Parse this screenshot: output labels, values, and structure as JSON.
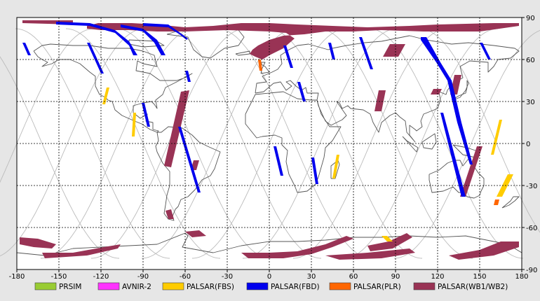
{
  "map": {
    "x_ticks": [
      "-180",
      "-150",
      "-120",
      "-90",
      "-60",
      "-30",
      "0",
      "30",
      "60",
      "90",
      "120",
      "150",
      "180"
    ],
    "y_ticks": [
      "90",
      "60",
      "30",
      "0",
      "-30",
      "-60",
      "-90"
    ],
    "x_range": [
      -180,
      180
    ],
    "y_range": [
      -90,
      90
    ],
    "grid": true,
    "grid_step_deg": 30
  },
  "legend": {
    "placement": "bottom",
    "items": [
      {
        "label": "PRSIM",
        "color": "#99cc33"
      },
      {
        "label": "AVNIR-2",
        "color": "#ff33ff"
      },
      {
        "label": "PALSAR(FBS)",
        "color": "#ffcc00"
      },
      {
        "label": "PALSAR(FBD)",
        "color": "#0000ee"
      },
      {
        "label": "PALSAR(PLR)",
        "color": "#ff6600"
      },
      {
        "label": "PALSAR(WB1/WB2)",
        "color": "#993355"
      }
    ]
  },
  "colors": {
    "background": "#ffffff",
    "coastline": "#555555",
    "orbit_track": "#bbbbbb",
    "grid": "#000000"
  },
  "swaths": [
    {
      "mode": "PALSAR(WB1/WB2)",
      "points": [
        [
          -130,
          84
        ],
        [
          -122,
          86
        ],
        [
          -98,
          86
        ],
        [
          -80,
          85
        ],
        [
          -60,
          83
        ],
        [
          -40,
          84
        ],
        [
          -20,
          86
        ],
        [
          0,
          86
        ],
        [
          20,
          85
        ],
        [
          45,
          84
        ],
        [
          70,
          83
        ],
        [
          100,
          84
        ],
        [
          120,
          85
        ],
        [
          160,
          86
        ],
        [
          178,
          86
        ],
        [
          178,
          84
        ],
        [
          150,
          80
        ],
        [
          130,
          80
        ],
        [
          110,
          80
        ],
        [
          80,
          81
        ],
        [
          60,
          80
        ],
        [
          40,
          80
        ],
        [
          25,
          78
        ],
        [
          10,
          77
        ],
        [
          0,
          74
        ],
        [
          -8,
          70
        ],
        [
          -12,
          67
        ],
        [
          -14,
          64
        ],
        [
          -10,
          62
        ],
        [
          -5,
          60
        ],
        [
          0,
          63
        ],
        [
          10,
          68
        ],
        [
          18,
          75
        ],
        [
          12,
          79
        ],
        [
          0,
          80
        ],
        [
          -30,
          81
        ],
        [
          -60,
          80
        ],
        [
          -80,
          80
        ],
        [
          -100,
          81
        ],
        [
          -120,
          81
        ],
        [
          -130,
          82
        ]
      ]
    },
    {
      "mode": "PALSAR(WB1/WB2)",
      "points": [
        [
          -176,
          88
        ],
        [
          -140,
          88
        ],
        [
          -140,
          85
        ],
        [
          -176,
          86
        ]
      ]
    },
    {
      "mode": "PALSAR(WB1/WB2)",
      "points": [
        [
          -63,
          37
        ],
        [
          -57,
          38
        ],
        [
          -70,
          -17
        ],
        [
          -75,
          -16
        ]
      ]
    },
    {
      "mode": "PALSAR(WB1/WB2)",
      "points": [
        [
          -54,
          -12
        ],
        [
          -50,
          -12
        ],
        [
          -52,
          -19
        ],
        [
          -56,
          -19
        ]
      ]
    },
    {
      "mode": "PALSAR(WB1/WB2)",
      "points": [
        [
          -74,
          -48
        ],
        [
          -70,
          -47
        ],
        [
          -68,
          -54
        ],
        [
          -72,
          -54
        ]
      ]
    },
    {
      "mode": "PALSAR(WB1/WB2)",
      "points": [
        [
          86,
          71
        ],
        [
          97,
          71
        ],
        [
          92,
          62
        ],
        [
          81,
          62
        ]
      ]
    },
    {
      "mode": "PALSAR(WB1/WB2)",
      "points": [
        [
          78,
          38
        ],
        [
          83,
          38
        ],
        [
          80,
          23
        ],
        [
          75,
          23
        ]
      ]
    },
    {
      "mode": "PALSAR(WB1/WB2)",
      "points": [
        [
          132,
          49
        ],
        [
          137,
          49
        ],
        [
          134,
          35
        ],
        [
          129,
          35
        ]
      ]
    },
    {
      "mode": "PALSAR(WB1/WB2)",
      "points": [
        [
          148,
          -2
        ],
        [
          152,
          -2
        ],
        [
          140,
          -38
        ],
        [
          136,
          -38
        ]
      ]
    },
    {
      "mode": "PALSAR(WB1/WB2)",
      "points": [
        [
          117,
          39
        ],
        [
          123,
          39
        ],
        [
          121,
          35
        ],
        [
          115,
          35
        ]
      ]
    },
    {
      "mode": "PALSAR(WB1/WB2)",
      "points": [
        [
          -178,
          -67
        ],
        [
          -165,
          -68
        ],
        [
          -152,
          -72
        ],
        [
          -155,
          -75
        ],
        [
          -168,
          -74
        ],
        [
          -178,
          -72
        ]
      ]
    },
    {
      "mode": "PALSAR(WB1/WB2)",
      "points": [
        [
          -162,
          -78
        ],
        [
          -140,
          -78
        ],
        [
          -118,
          -74
        ],
        [
          -106,
          -72
        ],
        [
          -108,
          -75
        ],
        [
          -130,
          -80
        ],
        [
          -160,
          -82
        ]
      ]
    },
    {
      "mode": "PALSAR(WB1/WB2)",
      "points": [
        [
          -20,
          -78
        ],
        [
          0,
          -78
        ],
        [
          20,
          -77
        ],
        [
          40,
          -72
        ],
        [
          55,
          -66
        ],
        [
          60,
          -68
        ],
        [
          45,
          -74
        ],
        [
          30,
          -79
        ],
        [
          10,
          -82
        ],
        [
          -15,
          -82
        ]
      ]
    },
    {
      "mode": "PALSAR(WB1/WB2)",
      "points": [
        [
          40,
          -80
        ],
        [
          70,
          -78
        ],
        [
          100,
          -75
        ],
        [
          104,
          -78
        ],
        [
          80,
          -82
        ],
        [
          50,
          -83
        ]
      ]
    },
    {
      "mode": "PALSAR(WB1/WB2)",
      "points": [
        [
          128,
          -80
        ],
        [
          150,
          -76
        ],
        [
          165,
          -70
        ],
        [
          178,
          -70
        ],
        [
          178,
          -74
        ],
        [
          160,
          -80
        ],
        [
          135,
          -83
        ]
      ]
    },
    {
      "mode": "PALSAR(WB1/WB2)",
      "points": [
        [
          70,
          -73
        ],
        [
          85,
          -70
        ],
        [
          98,
          -64
        ],
        [
          102,
          -67
        ],
        [
          88,
          -75
        ],
        [
          72,
          -77
        ]
      ]
    },
    {
      "mode": "PALSAR(WB1/WB2)",
      "points": [
        [
          -60,
          -63
        ],
        [
          -50,
          -62
        ],
        [
          -45,
          -66
        ],
        [
          -55,
          -67
        ]
      ]
    },
    {
      "mode": "PALSAR(FBD)",
      "points": [
        [
          -152,
          85
        ],
        [
          -128,
          84
        ],
        [
          -110,
          79
        ],
        [
          -100,
          70
        ],
        [
          -97,
          63
        ],
        [
          -94,
          63
        ],
        [
          -100,
          73
        ],
        [
          -110,
          81
        ],
        [
          -128,
          86
        ],
        [
          -152,
          87
        ]
      ]
    },
    {
      "mode": "PALSAR(FBD)",
      "points": [
        [
          -106,
          83
        ],
        [
          -90,
          80
        ],
        [
          -82,
          72
        ],
        [
          -77,
          63
        ],
        [
          -74,
          63
        ],
        [
          -80,
          74
        ],
        [
          -90,
          82
        ],
        [
          -106,
          85
        ]
      ]
    },
    {
      "mode": "PALSAR(FBD)",
      "points": [
        [
          -90,
          84
        ],
        [
          -72,
          83
        ],
        [
          -64,
          78
        ],
        [
          -59,
          74
        ],
        [
          -58,
          75
        ],
        [
          -65,
          80
        ],
        [
          -72,
          85
        ],
        [
          -90,
          86
        ]
      ]
    },
    {
      "mode": "PALSAR(FBD)",
      "points": [
        [
          -130,
          72
        ],
        [
          -128,
          72
        ],
        [
          -118,
          50
        ],
        [
          -120,
          50
        ]
      ]
    },
    {
      "mode": "PALSAR(FBD)",
      "points": [
        [
          -91,
          29
        ],
        [
          -89,
          29
        ],
        [
          -85,
          12
        ],
        [
          -87,
          12
        ]
      ]
    },
    {
      "mode": "PALSAR(FBD)",
      "points": [
        [
          -65,
          12
        ],
        [
          -63,
          12
        ],
        [
          -49,
          -35
        ],
        [
          -51,
          -35
        ]
      ]
    },
    {
      "mode": "PALSAR(FBD)",
      "points": [
        [
          -176,
          72
        ],
        [
          -174,
          72
        ],
        [
          -170,
          63
        ],
        [
          -172,
          63
        ]
      ]
    },
    {
      "mode": "PALSAR(FBD)",
      "points": [
        [
          10,
          70
        ],
        [
          12,
          70
        ],
        [
          17,
          54
        ],
        [
          15,
          54
        ]
      ]
    },
    {
      "mode": "PALSAR(FBD)",
      "points": [
        [
          20,
          44
        ],
        [
          22,
          44
        ],
        [
          26,
          30
        ],
        [
          24,
          30
        ]
      ]
    },
    {
      "mode": "PALSAR(FBD)",
      "points": [
        [
          3,
          -2
        ],
        [
          5,
          -2
        ],
        [
          10,
          -23
        ],
        [
          8,
          -23
        ]
      ]
    },
    {
      "mode": "PALSAR(FBD)",
      "points": [
        [
          30,
          -10
        ],
        [
          32,
          -10
        ],
        [
          35,
          -29
        ],
        [
          33,
          -29
        ]
      ]
    },
    {
      "mode": "PALSAR(FBD)",
      "points": [
        [
          64,
          76
        ],
        [
          66,
          76
        ],
        [
          74,
          53
        ],
        [
          72,
          53
        ]
      ]
    },
    {
      "mode": "PALSAR(FBD)",
      "points": [
        [
          42,
          72
        ],
        [
          44,
          72
        ],
        [
          47,
          60
        ],
        [
          45,
          60
        ]
      ]
    },
    {
      "mode": "PALSAR(FBD)",
      "points": [
        [
          108,
          76
        ],
        [
          112,
          76
        ],
        [
          122,
          58
        ],
        [
          130,
          45
        ],
        [
          137,
          15
        ],
        [
          145,
          -15
        ],
        [
          143,
          -15
        ],
        [
          134,
          15
        ],
        [
          127,
          45
        ],
        [
          119,
          58
        ],
        [
          108,
          74
        ]
      ]
    },
    {
      "mode": "PALSAR(FBD)",
      "points": [
        [
          122,
          22
        ],
        [
          124,
          22
        ],
        [
          140,
          -38
        ],
        [
          137,
          -38
        ]
      ]
    },
    {
      "mode": "PALSAR(FBD)",
      "points": [
        [
          150,
          72
        ],
        [
          152,
          72
        ],
        [
          158,
          60
        ],
        [
          156,
          60
        ]
      ]
    },
    {
      "mode": "PALSAR(FBD)",
      "points": [
        [
          -60,
          52
        ],
        [
          -58,
          52
        ],
        [
          -56,
          44
        ],
        [
          -58,
          44
        ]
      ]
    },
    {
      "mode": "PALSAR(FBS)",
      "points": [
        [
          -116,
          40
        ],
        [
          -114,
          40
        ],
        [
          -117,
          28
        ],
        [
          -119,
          28
        ]
      ]
    },
    {
      "mode": "PALSAR(FBS)",
      "points": [
        [
          -97,
          22
        ],
        [
          -95,
          22
        ],
        [
          -96,
          5
        ],
        [
          -98,
          5
        ]
      ]
    },
    {
      "mode": "PALSAR(FBS)",
      "points": [
        [
          164,
          17
        ],
        [
          166,
          17
        ],
        [
          160,
          -8
        ],
        [
          158,
          -8
        ]
      ]
    },
    {
      "mode": "PALSAR(FBS)",
      "points": [
        [
          170,
          -22
        ],
        [
          174,
          -22
        ],
        [
          166,
          -38
        ],
        [
          162,
          -38
        ]
      ]
    },
    {
      "mode": "PALSAR(FBS)",
      "points": [
        [
          48,
          -8
        ],
        [
          50,
          -8
        ],
        [
          47,
          -25
        ],
        [
          45,
          -25
        ]
      ]
    },
    {
      "mode": "PALSAR(FBS)",
      "points": [
        [
          80,
          -66
        ],
        [
          84,
          -66
        ],
        [
          88,
          -70
        ],
        [
          84,
          -70
        ]
      ]
    },
    {
      "mode": "PALSAR(PLR)",
      "points": [
        [
          -8,
          60
        ],
        [
          -6,
          60
        ],
        [
          -5,
          52
        ],
        [
          -7,
          52
        ]
      ]
    },
    {
      "mode": "PALSAR(PLR)",
      "points": [
        [
          161,
          -40
        ],
        [
          164,
          -40
        ],
        [
          163,
          -44
        ],
        [
          160,
          -44
        ]
      ]
    }
  ]
}
